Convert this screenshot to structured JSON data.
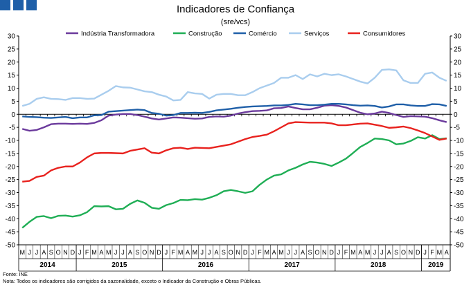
{
  "header": {
    "logo_color": "#1f5fa8"
  },
  "footer": {
    "source": "Fonte: INE",
    "note": "Nota: Todos os indicadores são corrigidos da sazonalidade, exceto o Indicador da Construção e Obras Públicas."
  },
  "chart_data": {
    "type": "line",
    "title": "Indicadores de Confiança",
    "subtitle": "(sre/vcs)",
    "ylim": [
      -50,
      30
    ],
    "yticks": [
      30,
      25,
      20,
      15,
      10,
      5,
      0,
      -5,
      -10,
      -15,
      -20,
      -25,
      -30,
      -35,
      -40,
      -45,
      -50
    ],
    "grid": false,
    "legend_position": "top",
    "month_labels": [
      "M",
      "J",
      "J",
      "A",
      "S",
      "O",
      "N",
      "D",
      "J",
      "F",
      "M",
      "A",
      "M",
      "J",
      "J",
      "A",
      "S",
      "O",
      "N",
      "D",
      "J",
      "F",
      "M",
      "A",
      "M",
      "J",
      "J",
      "A",
      "S",
      "O",
      "N",
      "D",
      "J",
      "F",
      "M",
      "A",
      "M",
      "J",
      "J",
      "A",
      "S",
      "O",
      "N",
      "D",
      "J",
      "F",
      "M",
      "A",
      "M",
      "J",
      "J",
      "A",
      "S",
      "O",
      "N",
      "D",
      "J",
      "F",
      "M",
      "A"
    ],
    "years": [
      {
        "label": "2014",
        "start": 0,
        "count": 8
      },
      {
        "label": "2015",
        "start": 8,
        "count": 12
      },
      {
        "label": "2016",
        "start": 20,
        "count": 12
      },
      {
        "label": "2017",
        "start": 32,
        "count": 12
      },
      {
        "label": "2018",
        "start": 44,
        "count": 12
      },
      {
        "label": "2019",
        "start": 56,
        "count": 4
      }
    ],
    "series": [
      {
        "name": "Indústria Transformadora",
        "color": "#6b3a9c",
        "values": [
          -5.6,
          -6.3,
          -6.0,
          -5.0,
          -3.8,
          -3.6,
          -3.6,
          -3.7,
          -3.6,
          -3.7,
          -3.3,
          -2.3,
          -0.5,
          -0.1,
          0.1,
          0.1,
          -0.3,
          -0.9,
          -1.6,
          -2.0,
          -1.6,
          -1.2,
          -1.3,
          -1.5,
          -1.7,
          -1.6,
          -1.0,
          -0.8,
          -0.9,
          -0.5,
          0.3,
          0.8,
          1.2,
          1.3,
          1.5,
          2.3,
          2.4,
          3.0,
          2.4,
          1.9,
          1.9,
          2.5,
          3.3,
          3.5,
          3.2,
          2.6,
          1.6,
          0.6,
          0.0,
          0.3,
          1.0,
          0.5,
          -0.3,
          -1.0,
          -0.7,
          -0.8,
          -0.9,
          -1.5,
          -2.3,
          -3.0
        ]
      },
      {
        "name": "Construção",
        "color": "#1fae55",
        "values": [
          -43.5,
          -41.2,
          -39.3,
          -39.0,
          -39.8,
          -38.9,
          -38.8,
          -39.2,
          -38.7,
          -37.5,
          -35.2,
          -35.3,
          -35.2,
          -36.4,
          -36.2,
          -34.3,
          -33.0,
          -33.9,
          -35.8,
          -36.2,
          -34.8,
          -34.0,
          -32.8,
          -32.9,
          -32.5,
          -32.7,
          -32.0,
          -31.0,
          -29.5,
          -29.0,
          -29.5,
          -30.1,
          -29.5,
          -27.0,
          -25.0,
          -23.5,
          -23.0,
          -21.5,
          -20.5,
          -19.2,
          -18.2,
          -18.5,
          -19.0,
          -19.8,
          -18.5,
          -17.0,
          -14.8,
          -12.5,
          -11.0,
          -9.3,
          -9.5,
          -10.0,
          -11.5,
          -11.2,
          -10.2,
          -8.8,
          -9.3,
          -8.0,
          -9.5,
          -9.2
        ]
      },
      {
        "name": "Comércio",
        "color": "#1f5fa8",
        "values": [
          -0.8,
          -1.0,
          -1.1,
          -1.3,
          -1.4,
          -1.2,
          -1.0,
          -1.5,
          -1.2,
          -1.2,
          -0.4,
          -0.3,
          1.0,
          1.2,
          1.4,
          1.6,
          1.8,
          1.6,
          0.5,
          0.2,
          -0.5,
          -0.3,
          0.5,
          0.5,
          0.6,
          0.5,
          0.9,
          1.5,
          1.8,
          2.1,
          2.5,
          2.8,
          3.0,
          3.1,
          3.2,
          3.4,
          3.4,
          3.6,
          4.0,
          3.8,
          3.5,
          3.5,
          3.7,
          4.0,
          4.0,
          3.8,
          3.5,
          3.3,
          3.4,
          3.2,
          2.6,
          3.0,
          3.8,
          3.8,
          3.4,
          3.2,
          3.2,
          3.9,
          3.8,
          3.2
        ]
      },
      {
        "name": "Serviços",
        "color": "#a9cdee",
        "values": [
          3.2,
          4.0,
          5.9,
          6.5,
          5.9,
          5.8,
          5.5,
          6.2,
          6.2,
          5.9,
          6.0,
          7.5,
          9.0,
          10.8,
          10.3,
          10.2,
          9.5,
          8.8,
          8.5,
          7.5,
          6.8,
          5.3,
          5.5,
          8.5,
          8.0,
          7.8,
          6.0,
          7.5,
          7.8,
          7.8,
          7.3,
          7.3,
          8.5,
          10.0,
          11.0,
          12.0,
          14.0,
          14.0,
          15.0,
          13.5,
          15.3,
          14.5,
          15.5,
          15.0,
          15.3,
          14.5,
          13.5,
          12.5,
          11.8,
          14.0,
          17.0,
          17.2,
          16.8,
          13.0,
          12.0,
          12.0,
          15.5,
          16.0,
          14.0,
          12.8
        ]
      },
      {
        "name": "Consumidores",
        "color": "#e8221e",
        "values": [
          -25.8,
          -25.5,
          -24.0,
          -23.5,
          -21.5,
          -20.5,
          -20.0,
          -20.0,
          -18.5,
          -16.5,
          -15.0,
          -14.8,
          -14.8,
          -14.9,
          -15.0,
          -14.0,
          -13.5,
          -13.0,
          -14.7,
          -15.0,
          -13.8,
          -13.0,
          -12.8,
          -13.3,
          -12.8,
          -12.9,
          -13.0,
          -12.5,
          -12.0,
          -11.5,
          -10.5,
          -9.5,
          -8.7,
          -8.3,
          -7.8,
          -6.5,
          -5.0,
          -3.5,
          -3.0,
          -3.1,
          -3.2,
          -3.2,
          -3.2,
          -3.5,
          -4.2,
          -4.2,
          -3.9,
          -3.6,
          -3.5,
          -4.0,
          -4.5,
          -5.2,
          -5.0,
          -4.7,
          -5.3,
          -6.2,
          -7.2,
          -8.5,
          -9.8,
          -9.3
        ]
      }
    ]
  }
}
